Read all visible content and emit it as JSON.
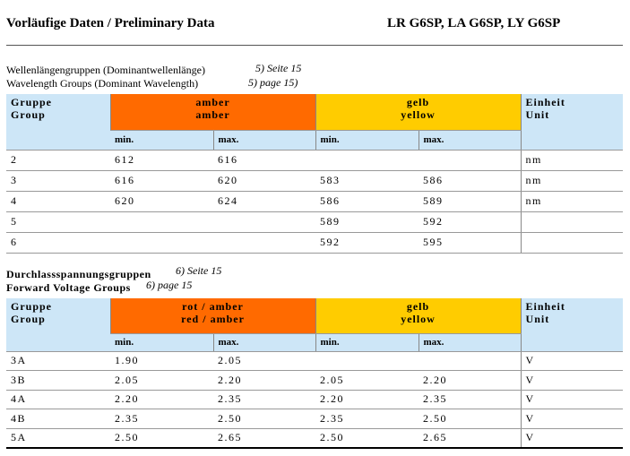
{
  "header": {
    "title_left": "Vorläufige Daten / Preliminary Data",
    "title_right": "LR G6SP, LA G6SP, LY G6SP"
  },
  "sections": [
    {
      "caption": [
        "Wellenlängengruppen (Dominantwellenlänge)",
        "Wavelength Groups (Dominant Wavelength)"
      ],
      "notes": [
        "5) Seite 15",
        "5) page 15)"
      ],
      "table": {
        "group": [
          "Gruppe",
          "Group"
        ],
        "col1": [
          "amber",
          "amber"
        ],
        "col2": [
          "gelb",
          "yellow"
        ],
        "unit": [
          "Einheit",
          "Unit"
        ],
        "sub": [
          "min.",
          "max.",
          "min.",
          "max."
        ],
        "rows": [
          [
            "2",
            "612",
            "616",
            null,
            null,
            "nm"
          ],
          [
            "3",
            "616",
            "620",
            "583",
            "586",
            "nm"
          ],
          [
            "4",
            "620",
            "624",
            "586",
            "589",
            "nm"
          ],
          [
            "5",
            null,
            null,
            "589",
            "592",
            null
          ],
          [
            "6",
            null,
            null,
            "592",
            "595",
            null
          ]
        ]
      }
    },
    {
      "caption": [
        "Durchlassspannungsgruppen",
        "Forward Voltage Groups"
      ],
      "notes": [
        "6) Seite 15",
        "6) page 15"
      ],
      "table": {
        "group": [
          "Gruppe",
          "Group"
        ],
        "col1": [
          "rot / amber",
          "red / amber"
        ],
        "col2": [
          "gelb",
          "yellow"
        ],
        "unit": [
          "Einheit",
          "Unit"
        ],
        "sub": [
          "min.",
          "max.",
          "min.",
          "max."
        ],
        "rows": [
          [
            "3A",
            "1.90",
            "2.05",
            null,
            null,
            "V"
          ],
          [
            "3B",
            "2.05",
            "2.20",
            "2.05",
            "2.20",
            "V"
          ],
          [
            "4A",
            "2.20",
            "2.35",
            "2.20",
            "2.35",
            "V"
          ],
          [
            "4B",
            "2.35",
            "2.50",
            "2.35",
            "2.50",
            "V"
          ],
          [
            "5A",
            "2.50",
            "2.65",
            "2.50",
            "2.65",
            "V"
          ]
        ]
      }
    }
  ]
}
